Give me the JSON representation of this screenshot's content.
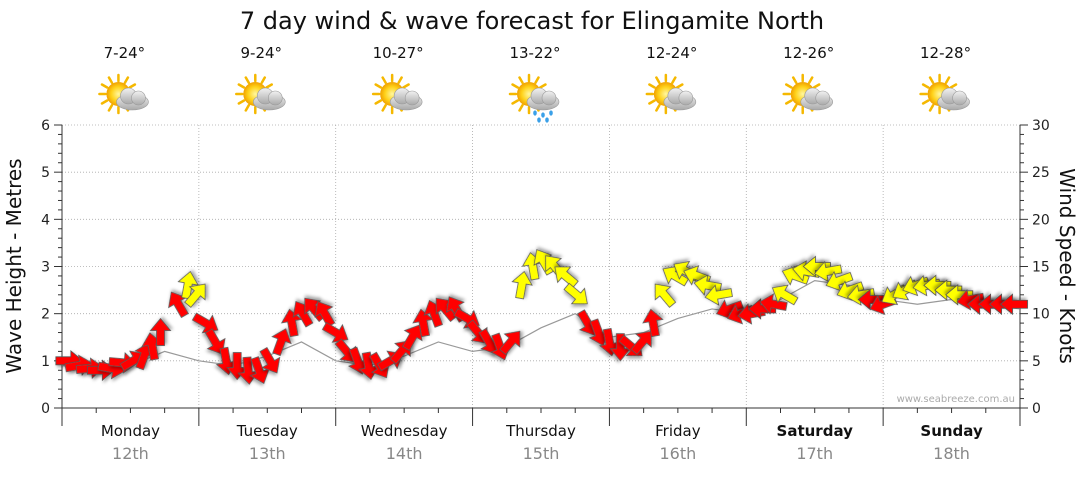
{
  "title": "7 day wind & wave forecast for Elingamite North",
  "watermark": "www.seabreeze.com.au",
  "chart_data": {
    "type": "line",
    "title": "7 day wind & wave forecast for Elingamite North",
    "ylabel_left": "Wave Height - Metres",
    "ylabel_right": "Wind Speed - Knots",
    "ylim_left": [
      0,
      6
    ],
    "yticks_left": [
      "0",
      "1",
      "2",
      "3",
      "4",
      "5",
      "6"
    ],
    "ylim_right": [
      0,
      30
    ],
    "yticks_right": [
      "0",
      "5",
      "10",
      "15",
      "20",
      "25",
      "30"
    ],
    "grid": true,
    "days": [
      {
        "name": "Monday",
        "date": "12th",
        "temp": "7-24°",
        "icon": "partly-cloudy-icon",
        "bold": false
      },
      {
        "name": "Tuesday",
        "date": "13th",
        "temp": "9-24°",
        "icon": "partly-cloudy-icon",
        "bold": false
      },
      {
        "name": "Wednesday",
        "date": "14th",
        "temp": "10-27°",
        "icon": "partly-cloudy-icon",
        "bold": false
      },
      {
        "name": "Thursday",
        "date": "15th",
        "temp": "13-22°",
        "icon": "partly-cloudy-rain-icon",
        "bold": false
      },
      {
        "name": "Friday",
        "date": "16th",
        "temp": "12-24°",
        "icon": "partly-cloudy-icon",
        "bold": false
      },
      {
        "name": "Saturday",
        "date": "17th",
        "temp": "12-26°",
        "icon": "partly-cloudy-icon",
        "bold": true
      },
      {
        "name": "Sunday",
        "date": "18th",
        "temp": "12-28°",
        "icon": "partly-cloudy-icon",
        "bold": true
      }
    ],
    "wave_series": {
      "color": "#999999",
      "x_days": [
        0,
        0.25,
        0.5,
        0.75,
        1.0,
        1.25,
        1.5,
        1.75,
        2.0,
        2.25,
        2.5,
        2.75,
        3.0,
        3.25,
        3.5,
        3.75,
        4.0,
        4.25,
        4.5,
        4.75,
        5.0,
        5.25,
        5.5,
        5.75,
        6.0,
        6.25,
        6.5,
        6.75,
        7.0
      ],
      "values": [
        0.9,
        0.8,
        0.9,
        1.2,
        1.0,
        0.9,
        1.1,
        1.4,
        1.0,
        0.9,
        1.1,
        1.4,
        1.2,
        1.3,
        1.7,
        2.0,
        1.5,
        1.6,
        1.9,
        2.1,
        2.0,
        2.3,
        2.7,
        2.6,
        2.3,
        2.2,
        2.3,
        2.2,
        2.1
      ]
    },
    "wind_series": {
      "x_days": [
        0.05,
        0.12,
        0.2,
        0.28,
        0.36,
        0.44,
        0.52,
        0.6,
        0.66,
        0.72,
        0.85,
        0.92,
        0.98,
        1.05,
        1.12,
        1.2,
        1.28,
        1.36,
        1.44,
        1.52,
        1.6,
        1.68,
        1.76,
        1.84,
        1.92,
        2.0,
        2.08,
        2.16,
        2.24,
        2.32,
        2.4,
        2.48,
        2.56,
        2.64,
        2.72,
        2.8,
        2.88,
        2.96,
        3.04,
        3.12,
        3.2,
        3.28,
        3.36,
        3.44,
        3.52,
        3.6,
        3.68,
        3.76,
        3.84,
        3.92,
        4.0,
        4.08,
        4.16,
        4.24,
        4.32,
        4.4,
        4.48,
        4.56,
        4.64,
        4.72,
        4.8,
        4.88,
        4.96,
        5.04,
        5.12,
        5.2,
        5.28,
        5.36,
        5.44,
        5.52,
        5.6,
        5.68,
        5.76,
        5.84,
        5.92,
        6.0,
        6.08,
        6.16,
        6.24,
        6.32,
        6.4,
        6.48,
        6.56,
        6.64,
        6.72,
        6.8,
        6.88,
        6.96
      ],
      "values": [
        5,
        4.5,
        4.2,
        4,
        4.2,
        4.8,
        5,
        5.5,
        6.5,
        8,
        11,
        13,
        12,
        9,
        7,
        5,
        4.5,
        4,
        4,
        5,
        7,
        9,
        10,
        10.5,
        10,
        8,
        6,
        5,
        4.5,
        4.5,
        5,
        6,
        7.5,
        9,
        10,
        10.5,
        10.5,
        9.5,
        8,
        7,
        6.5,
        7,
        13,
        15,
        15.5,
        15,
        14,
        12,
        9,
        8,
        7,
        6.5,
        6.5,
        7,
        9,
        12,
        14,
        14.5,
        14,
        13,
        12,
        10.5,
        10,
        10,
        10.5,
        11,
        12,
        14,
        14.5,
        15,
        14.5,
        13.5,
        12.5,
        12,
        11.5,
        11,
        12,
        12.5,
        13,
        13,
        13,
        12.5,
        12,
        11.5,
        11,
        11,
        11,
        11
      ],
      "directions_deg": [
        90,
        80,
        85,
        90,
        100,
        95,
        60,
        20,
        350,
        0,
        330,
        10,
        40,
        120,
        150,
        170,
        180,
        175,
        160,
        150,
        20,
        350,
        330,
        320,
        330,
        120,
        140,
        160,
        170,
        150,
        60,
        40,
        30,
        350,
        340,
        320,
        330,
        120,
        140,
        150,
        160,
        40,
        10,
        350,
        330,
        320,
        310,
        130,
        150,
        160,
        170,
        180,
        130,
        40,
        350,
        320,
        300,
        300,
        290,
        280,
        260,
        250,
        250,
        260,
        270,
        280,
        300,
        290,
        280,
        270,
        260,
        250,
        250,
        260,
        270,
        250,
        240,
        240,
        250,
        260,
        270,
        270,
        270,
        260,
        270,
        270,
        270,
        270
      ]
    },
    "wind_color_rule": "red below 12 knots, yellow at or above 12 knots"
  }
}
